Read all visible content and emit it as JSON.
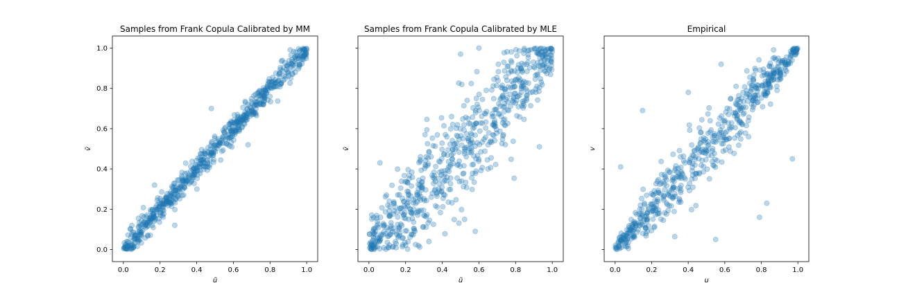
{
  "figure": {
    "background": "#ffffff"
  },
  "chart_data": [
    {
      "type": "scatter",
      "title": "Samples from Frank Copula Calibrated by MM",
      "xlabel": "ũ",
      "ylabel": "ṽ",
      "xlim": [
        -0.06,
        1.06
      ],
      "ylim": [
        -0.06,
        1.06
      ],
      "xticks": [
        "0.0",
        "0.2",
        "0.4",
        "0.6",
        "0.8",
        "1.0"
      ],
      "yticks": [
        "0.0",
        "0.2",
        "0.4",
        "0.6",
        "0.8",
        "1.0"
      ],
      "show_yticklabels": true,
      "grid": false,
      "marker_color": "#1f77b4",
      "marker_alpha": 0.3,
      "series": [
        {
          "x": [],
          "y": []
        }
      ],
      "sample_model": {
        "n": 700,
        "noise": 0.03,
        "outliers": [
          [
            0.48,
            0.7
          ],
          [
            0.28,
            0.12
          ],
          [
            0.17,
            0.32
          ],
          [
            0.68,
            0.52
          ]
        ]
      }
    },
    {
      "type": "scatter",
      "title": "Samples from Frank Copula Calibrated by MLE",
      "xlabel": "ũ",
      "ylabel": "ṽ",
      "xlim": [
        -0.06,
        1.06
      ],
      "ylim": [
        -0.06,
        1.06
      ],
      "xticks": [
        "0.0",
        "0.2",
        "0.4",
        "0.6",
        "0.8",
        "1.0"
      ],
      "yticks": [
        "0.0",
        "0.2",
        "0.4",
        "0.6",
        "0.8",
        "1.0"
      ],
      "show_yticklabels": false,
      "grid": false,
      "marker_color": "#1f77b4",
      "marker_alpha": 0.3,
      "series": [
        {
          "x": [],
          "y": []
        }
      ],
      "sample_model": {
        "n": 700,
        "noise": 0.1,
        "outliers": [
          [
            0.5,
            0.97
          ],
          [
            0.6,
            1.0
          ],
          [
            0.06,
            0.43
          ],
          [
            0.58,
            0.09
          ],
          [
            0.93,
            0.51
          ],
          [
            0.27,
            0.02
          ]
        ]
      }
    },
    {
      "type": "scatter",
      "title": "Empirical",
      "xlabel": "u",
      "ylabel": "v",
      "xlim": [
        -0.06,
        1.06
      ],
      "ylim": [
        -0.06,
        1.06
      ],
      "xticks": [
        "0.0",
        "0.2",
        "0.4",
        "0.6",
        "0.8",
        "1.0"
      ],
      "yticks": [
        "0.0",
        "0.2",
        "0.4",
        "0.6",
        "0.8",
        "1.0"
      ],
      "show_yticklabels": false,
      "grid": false,
      "marker_color": "#1f77b4",
      "marker_alpha": 0.3,
      "series": [
        {
          "x": [],
          "y": []
        }
      ],
      "sample_model": {
        "n": 600,
        "noise": 0.05,
        "outliers": [
          [
            0.03,
            0.41
          ],
          [
            0.15,
            0.69
          ],
          [
            0.58,
            0.92
          ],
          [
            0.79,
            0.16
          ],
          [
            0.55,
            0.05
          ],
          [
            0.97,
            0.45
          ],
          [
            0.83,
            0.23
          ],
          [
            0.4,
            0.78
          ]
        ]
      }
    }
  ]
}
